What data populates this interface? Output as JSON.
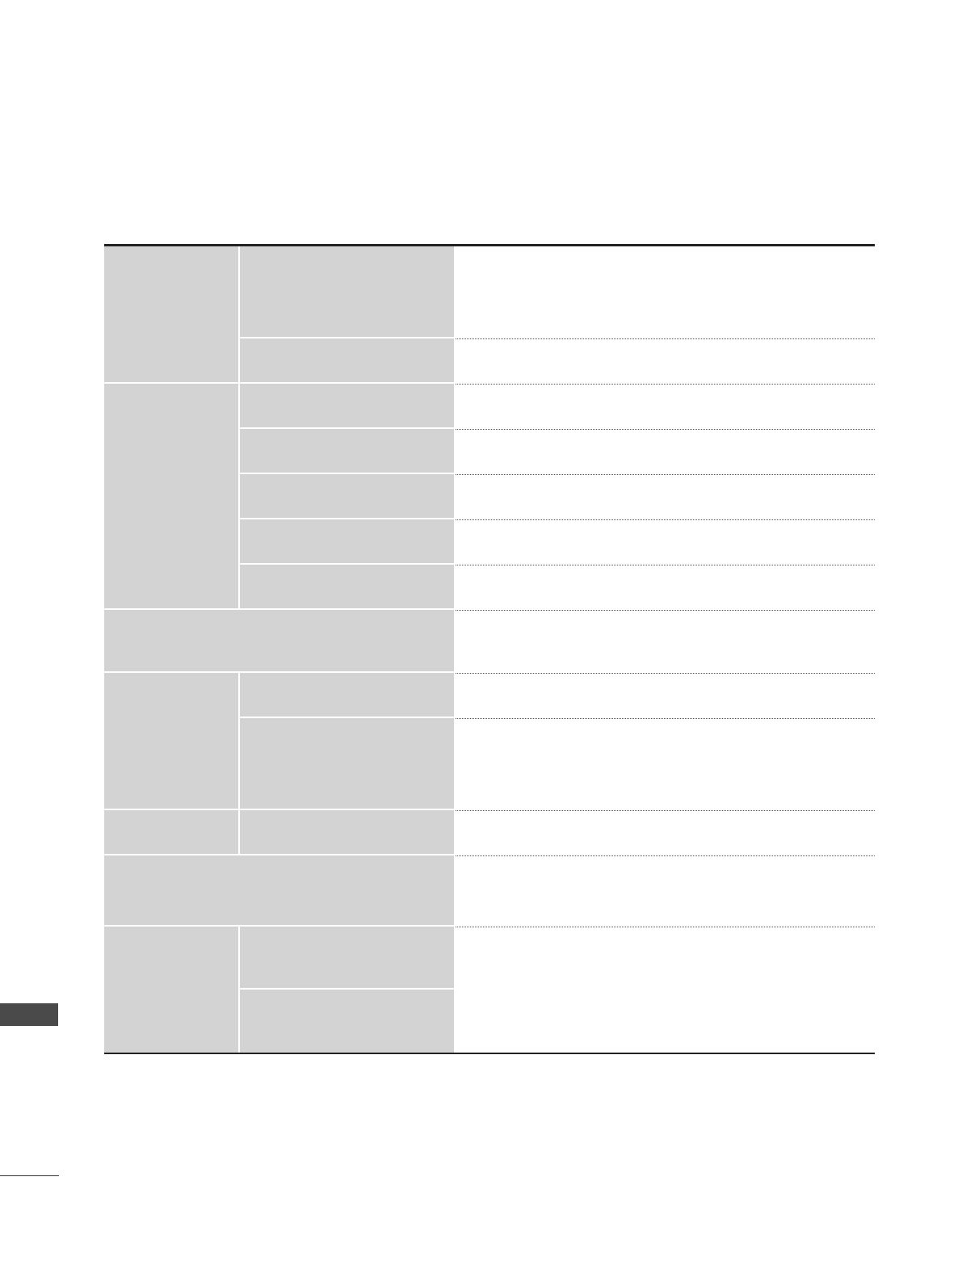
{
  "colors": {
    "header_cell": "#d3d3d3",
    "rule": "#222222",
    "side_tab": "#4a4a4a"
  }
}
